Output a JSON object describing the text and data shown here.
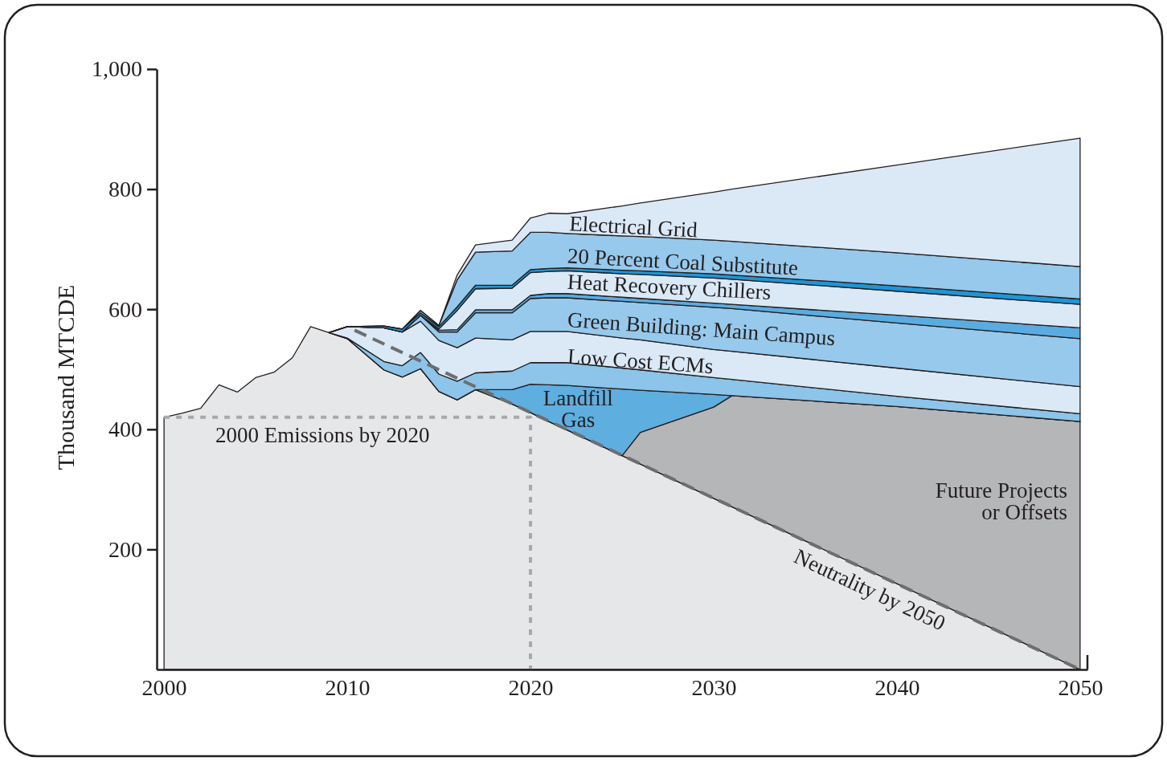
{
  "chart_data": {
    "type": "area",
    "stacked": true,
    "ylabel": "Thousand MTCDE",
    "x": [
      2000,
      2001,
      2002,
      2003,
      2004,
      2005,
      2006,
      2007,
      2008,
      2009,
      2010,
      2012,
      2013,
      2014,
      2015,
      2016,
      2017,
      2019,
      2020,
      2021,
      2022,
      2025,
      2026,
      2030,
      2031,
      2040,
      2050
    ],
    "xlim": [
      1999.6,
      2050.4
    ],
    "xticks": [
      2000,
      2010,
      2020,
      2030,
      2040,
      2050
    ],
    "ylim": [
      0,
      1000
    ],
    "yticks": [
      200,
      400,
      600,
      800,
      {
        "value": 1000,
        "label": "1,000"
      }
    ],
    "series": [
      {
        "color": "#e6e7e8",
        "values": [
          420,
          427,
          435,
          474,
          462,
          486,
          495,
          519,
          571,
          561,
          551,
          499,
          487,
          501,
          463,
          449,
          466,
          442,
          428,
          413,
          399,
          356,
          342,
          285,
          271,
          143,
          0
        ]
      },
      {
        "name": "Future Projects or Offsets",
        "color": "#b5b6b8",
        "values": [
          null,
          null,
          null,
          null,
          null,
          null,
          null,
          null,
          null,
          0,
          0,
          0,
          0,
          0,
          0,
          0,
          0,
          0,
          0,
          0,
          0,
          0,
          53,
          152,
          185,
          295,
          413
        ]
      },
      {
        "name": "Landfill Gas",
        "color": "#5faee0",
        "values": [
          null,
          null,
          null,
          null,
          null,
          null,
          null,
          null,
          null,
          0,
          0,
          0,
          0,
          0,
          0,
          0,
          0,
          24,
          47,
          61,
          74,
          111,
          70,
          21,
          0,
          0,
          0
        ]
      },
      {
        "color": "#8cc4ea",
        "values": [
          null,
          null,
          null,
          null,
          null,
          null,
          null,
          null,
          null,
          0,
          1,
          14,
          19,
          27,
          29,
          31,
          28,
          31,
          36,
          37,
          38,
          35,
          34,
          28,
          27,
          17,
          13
        ]
      },
      {
        "name": "Low Cost ECMs",
        "color": "#dbe9f7",
        "values": [
          null,
          null,
          null,
          null,
          null,
          null,
          null,
          null,
          null,
          0,
          19,
          56,
          56,
          52,
          56,
          56,
          58,
          52,
          52,
          52,
          52,
          50,
          50,
          47,
          47,
          47,
          45
        ]
      },
      {
        "name": "Green Building: Main Campus",
        "color": "#97c9ec",
        "values": [
          null,
          null,
          null,
          null,
          null,
          null,
          null,
          null,
          null,
          0,
          0,
          0,
          0,
          10,
          14,
          26,
          42,
          45,
          55,
          56,
          56,
          61,
          62,
          70,
          71,
          75,
          80
        ]
      },
      {
        "color": "#5aace0",
        "values": [
          null,
          null,
          null,
          null,
          null,
          null,
          null,
          null,
          null,
          0,
          0,
          0,
          0,
          0,
          3,
          4,
          5,
          5,
          5,
          7,
          7,
          7,
          7,
          7,
          7,
          13,
          18
        ]
      },
      {
        "name": "Heat Recovery Chillers",
        "color": "#dbe9f7",
        "values": [
          null,
          null,
          null,
          null,
          null,
          null,
          null,
          null,
          null,
          0,
          0,
          0,
          0,
          0,
          2,
          32,
          35,
          36,
          38,
          37,
          38,
          39,
          40,
          42,
          42,
          40,
          39
        ]
      },
      {
        "color": "#1f95d6",
        "values": [
          null,
          null,
          null,
          null,
          null,
          null,
          null,
          null,
          null,
          0,
          0,
          3,
          5,
          4,
          4,
          6,
          6,
          5,
          5,
          5,
          5,
          6,
          6,
          7,
          7,
          9,
          9
        ]
      },
      {
        "name": "20 Percent Coal Substitute",
        "color": "#97c9ec",
        "values": [
          null,
          null,
          null,
          null,
          null,
          null,
          null,
          null,
          null,
          0,
          0,
          0,
          0,
          4,
          2,
          45,
          55,
          57,
          62,
          60,
          57,
          57,
          57,
          56,
          56,
          55,
          54
        ]
      },
      {
        "name": "Electrical Grid",
        "color": "#dbe9f7",
        "values": [
          null,
          null,
          null,
          null,
          null,
          null,
          null,
          null,
          null,
          0,
          0,
          0,
          0,
          0,
          0,
          8,
          12,
          18,
          24,
          32,
          33,
          50,
          56,
          80,
          87,
          146,
          214
        ]
      },
      {
        "name": "Neutrality by 2050",
        "type": "line",
        "line_style": "dashed",
        "color": "#6d6e71",
        "x": [
          2010.4,
          2050
        ],
        "values": [
          565,
          0
        ]
      },
      {
        "name": "2000 Emissions by 2020",
        "type": "line",
        "line_style": "dotted",
        "color": "#a7a9ac",
        "x": [
          2000,
          2020,
          2020
        ],
        "values": [
          420,
          420,
          0
        ]
      }
    ]
  }
}
